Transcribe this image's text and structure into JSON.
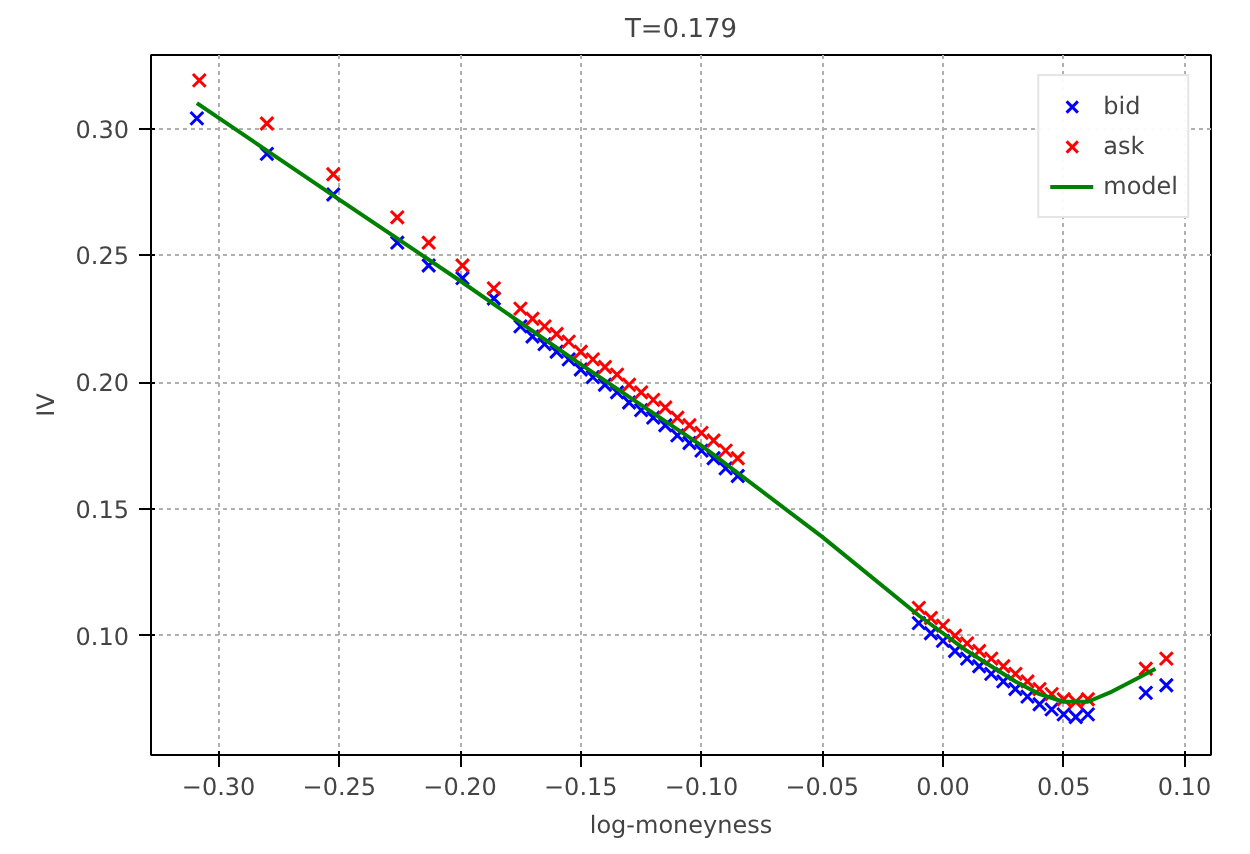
{
  "chart_data": {
    "type": "scatter",
    "title": "T=0.179",
    "xlabel": "log-moneyness",
    "ylabel": "IV",
    "xlim": [
      -0.328,
      0.111
    ],
    "ylim": [
      0.053,
      0.329
    ],
    "xticks": [
      {
        "value": -0.3,
        "label": "−0.30"
      },
      {
        "value": -0.25,
        "label": "−0.25"
      },
      {
        "value": -0.2,
        "label": "−0.20"
      },
      {
        "value": -0.15,
        "label": "−0.15"
      },
      {
        "value": -0.1,
        "label": "−0.10"
      },
      {
        "value": -0.05,
        "label": "−0.05"
      },
      {
        "value": 0,
        "label": "0.00"
      },
      {
        "value": 0.05,
        "label": "0.05"
      },
      {
        "value": 0.1,
        "label": "0.10"
      }
    ],
    "yticks": [
      {
        "value": 0.1,
        "label": "0.10"
      },
      {
        "value": 0.15,
        "label": "0.15"
      },
      {
        "value": 0.2,
        "label": "0.20"
      },
      {
        "value": 0.25,
        "label": "0.25"
      },
      {
        "value": 0.3,
        "label": "0.30"
      }
    ],
    "grid": true,
    "legend": "top right",
    "series": [
      {
        "name": "bid",
        "marker": "cross",
        "color": "#0000ff",
        "x": [
          -0.309,
          -0.28,
          -0.2525,
          -0.226,
          -0.213,
          -0.199,
          -0.186,
          -0.175,
          -0.17,
          -0.165,
          -0.16,
          -0.155,
          -0.15,
          -0.145,
          -0.14,
          -0.135,
          -0.13,
          -0.125,
          -0.12,
          -0.115,
          -0.11,
          -0.105,
          -0.1,
          -0.095,
          -0.09,
          -0.085,
          -0.01,
          -0.005,
          0,
          0.005,
          0.01,
          0.015,
          0.02,
          0.025,
          0.03,
          0.035,
          0.04,
          0.045,
          0.05,
          0.055,
          0.06,
          0.084,
          0.0925
        ],
        "values": [
          0.304,
          0.29,
          0.274,
          0.255,
          0.246,
          0.241,
          0.233,
          0.222,
          0.218,
          0.215,
          0.212,
          0.209,
          0.205,
          0.202,
          0.199,
          0.196,
          0.192,
          0.189,
          0.186,
          0.183,
          0.179,
          0.176,
          0.173,
          0.17,
          0.166,
          0.163,
          0.105,
          0.101,
          0.098,
          0.094,
          0.091,
          0.088,
          0.085,
          0.082,
          0.079,
          0.076,
          0.073,
          0.071,
          0.069,
          0.068,
          0.069,
          0.0775,
          0.0805
        ]
      },
      {
        "name": "ask",
        "marker": "cross",
        "color": "#ff0000",
        "x": [
          -0.308,
          -0.28,
          -0.2525,
          -0.226,
          -0.213,
          -0.199,
          -0.186,
          -0.175,
          -0.17,
          -0.165,
          -0.16,
          -0.155,
          -0.15,
          -0.145,
          -0.14,
          -0.135,
          -0.13,
          -0.125,
          -0.12,
          -0.115,
          -0.11,
          -0.105,
          -0.1,
          -0.095,
          -0.09,
          -0.085,
          -0.01,
          -0.005,
          0,
          0.005,
          0.01,
          0.015,
          0.02,
          0.025,
          0.03,
          0.035,
          0.04,
          0.045,
          0.05,
          0.055,
          0.06,
          0.084,
          0.0925
        ],
        "values": [
          0.319,
          0.302,
          0.282,
          0.265,
          0.255,
          0.246,
          0.237,
          0.229,
          0.225,
          0.222,
          0.219,
          0.216,
          0.212,
          0.209,
          0.206,
          0.203,
          0.199,
          0.196,
          0.193,
          0.19,
          0.186,
          0.183,
          0.18,
          0.177,
          0.173,
          0.17,
          0.111,
          0.107,
          0.104,
          0.1,
          0.097,
          0.094,
          0.091,
          0.088,
          0.085,
          0.082,
          0.079,
          0.077,
          0.075,
          0.074,
          0.075,
          0.087,
          0.091
        ]
      },
      {
        "name": "model",
        "type": "line",
        "marker": "none",
        "color": "#008000",
        "x": [
          -0.309,
          -0.25,
          -0.2,
          -0.15,
          -0.1,
          -0.05,
          -0.01,
          0,
          0.01,
          0.02,
          0.03,
          0.04,
          0.05,
          0.06,
          0.07,
          0.08,
          0.088
        ],
        "values": [
          0.31,
          0.272,
          0.24,
          0.207,
          0.175,
          0.139,
          0.108,
          0.101,
          0.094,
          0.088,
          0.082,
          0.077,
          0.074,
          0.074,
          0.078,
          0.083,
          0.087
        ]
      }
    ]
  }
}
